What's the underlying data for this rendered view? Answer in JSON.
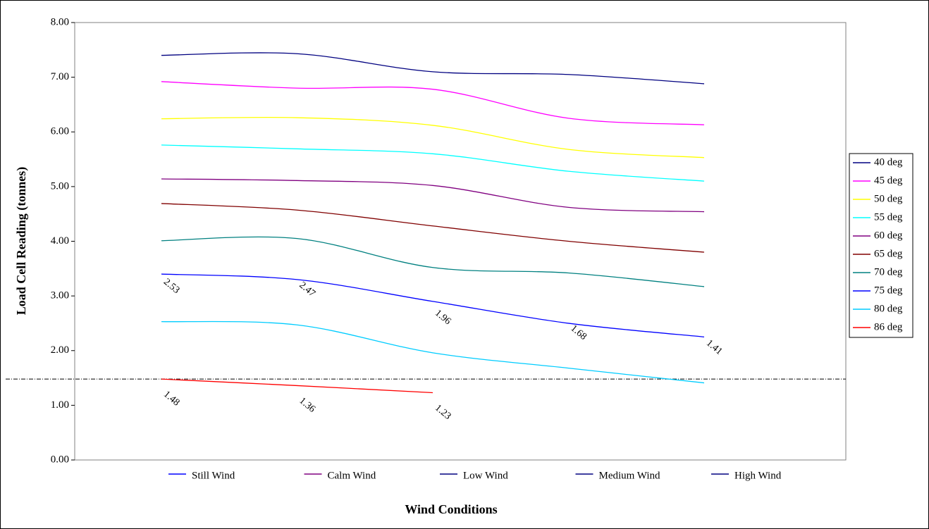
{
  "chart_data": {
    "type": "line",
    "y_label": "Load Cell Reading (tonnes)",
    "x_label": "Wind Conditions",
    "categories": [
      "Still Wind",
      "Calm Wind",
      "Low Wind",
      "Medium Wind",
      "High Wind"
    ],
    "category_colors": [
      "#0000ff",
      "#800080",
      "#000080",
      "#000080",
      "#000080"
    ],
    "ylim": [
      0,
      8
    ],
    "yticks": [
      {
        "value": 0,
        "label": "0.00"
      },
      {
        "value": 1,
        "label": "1.00"
      },
      {
        "value": 2,
        "label": "2.00"
      },
      {
        "value": 3,
        "label": "3.00"
      },
      {
        "value": 4,
        "label": "4.00"
      },
      {
        "value": 5,
        "label": "5.00"
      },
      {
        "value": 6,
        "label": "6.00"
      },
      {
        "value": 7,
        "label": "7.00"
      },
      {
        "value": 8,
        "label": "8.00"
      }
    ],
    "reference_line": 1.48,
    "series": [
      {
        "name": "40 deg",
        "color": "#000080",
        "values": [
          7.4,
          7.43,
          7.1,
          7.05,
          6.88
        ]
      },
      {
        "name": "45 deg",
        "color": "#ff00ff",
        "values": [
          6.92,
          6.8,
          6.78,
          6.25,
          6.13
        ]
      },
      {
        "name": "50 deg",
        "color": "#ffff00",
        "values": [
          6.24,
          6.26,
          6.12,
          5.68,
          5.53
        ]
      },
      {
        "name": "55 deg",
        "color": "#00ffff",
        "values": [
          5.76,
          5.69,
          5.6,
          5.28,
          5.1
        ]
      },
      {
        "name": "60 deg",
        "color": "#800080",
        "values": [
          5.14,
          5.11,
          5.02,
          4.62,
          4.54
        ]
      },
      {
        "name": "65 deg",
        "color": "#800000",
        "values": [
          4.69,
          4.57,
          4.28,
          4.0,
          3.8
        ]
      },
      {
        "name": "70 deg",
        "color": "#008080",
        "values": [
          4.01,
          4.05,
          3.52,
          3.42,
          3.17
        ]
      },
      {
        "name": "75 deg",
        "color": "#0000ff",
        "values": [
          3.4,
          3.3,
          2.9,
          2.5,
          2.25
        ]
      },
      {
        "name": "80 deg",
        "color": "#00ccff",
        "values": [
          2.53,
          2.47,
          1.96,
          1.68,
          1.41
        ],
        "show_labels": true
      },
      {
        "name": "86 deg",
        "color": "#ff0000",
        "values": [
          1.48,
          1.36,
          1.23,
          null,
          null
        ],
        "show_labels": true
      }
    ]
  }
}
